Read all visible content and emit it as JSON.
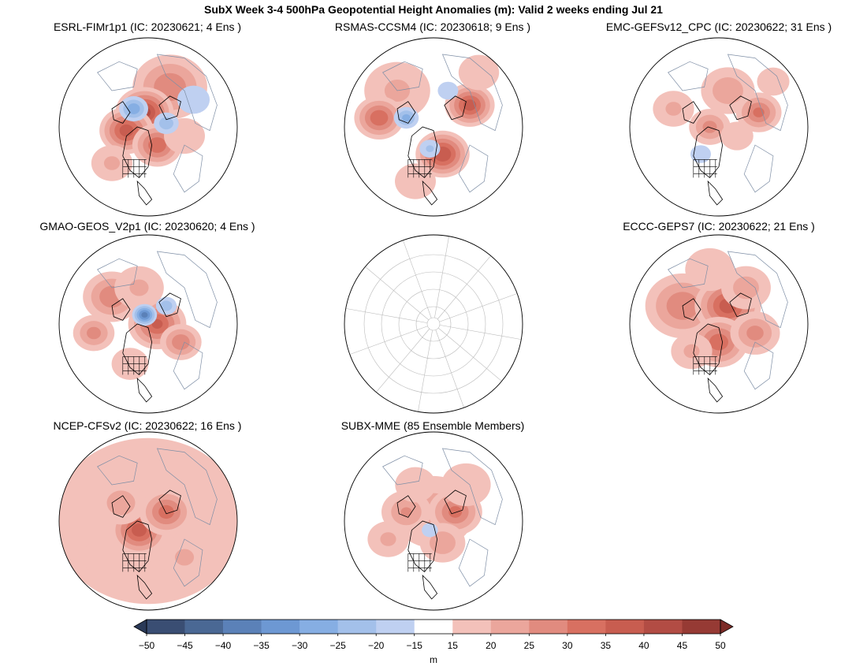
{
  "title": "SubX Week 3-4 500hPa Geopotential Height Anomalies (m): Valid 2 weeks ending Jul 21",
  "panels": [
    {
      "title": "ESRL-FIMr1p1 (IC: 20230621; 4 Ens )",
      "has_data": true,
      "blobs": [
        [
          0.62,
          0.28,
          0.18,
          30
        ],
        [
          0.48,
          0.42,
          0.14,
          42
        ],
        [
          0.38,
          0.52,
          0.13,
          38
        ],
        [
          0.55,
          0.6,
          0.12,
          35
        ],
        [
          0.3,
          0.7,
          0.1,
          22
        ],
        [
          0.7,
          0.55,
          0.1,
          20
        ],
        [
          0.42,
          0.4,
          0.07,
          -30
        ],
        [
          0.6,
          0.48,
          0.06,
          -25
        ],
        [
          0.75,
          0.35,
          0.08,
          -18
        ]
      ]
    },
    {
      "title": "RSMAS-CCSM4 (IC: 20230618; 9 Ens )",
      "has_data": true,
      "blobs": [
        [
          0.3,
          0.3,
          0.16,
          22
        ],
        [
          0.2,
          0.45,
          0.12,
          35
        ],
        [
          0.55,
          0.65,
          0.13,
          40
        ],
        [
          0.7,
          0.38,
          0.12,
          38
        ],
        [
          0.4,
          0.8,
          0.1,
          20
        ],
        [
          0.75,
          0.2,
          0.1,
          18
        ],
        [
          0.35,
          0.45,
          0.06,
          -28
        ],
        [
          0.48,
          0.62,
          0.05,
          -22
        ],
        [
          0.58,
          0.3,
          0.05,
          -20
        ]
      ]
    },
    {
      "title": "EMC-GEFSv12_CPC (IC: 20230622; 31 Ens )",
      "has_data": true,
      "blobs": [
        [
          0.55,
          0.3,
          0.13,
          25
        ],
        [
          0.72,
          0.42,
          0.11,
          32
        ],
        [
          0.45,
          0.5,
          0.1,
          28
        ],
        [
          0.25,
          0.4,
          0.1,
          22
        ],
        [
          0.6,
          0.55,
          0.08,
          20
        ],
        [
          0.8,
          0.25,
          0.08,
          18
        ],
        [
          0.4,
          0.65,
          0.05,
          -20
        ]
      ]
    },
    {
      "title": "GMAO-GEOS_V2p1 (IC: 20230620; 4 Ens )",
      "has_data": true,
      "blobs": [
        [
          0.3,
          0.35,
          0.14,
          30
        ],
        [
          0.55,
          0.5,
          0.14,
          36
        ],
        [
          0.2,
          0.55,
          0.1,
          28
        ],
        [
          0.68,
          0.6,
          0.1,
          30
        ],
        [
          0.45,
          0.3,
          0.12,
          22
        ],
        [
          0.4,
          0.72,
          0.09,
          20
        ],
        [
          0.48,
          0.45,
          0.06,
          -38
        ],
        [
          0.6,
          0.4,
          0.05,
          -25
        ]
      ]
    },
    {
      "title": "",
      "has_data": false,
      "blobs": []
    },
    {
      "title": "ECCC-GEPS7 (IC: 20230622; 21 Ens )",
      "has_data": true,
      "blobs": [
        [
          0.3,
          0.4,
          0.18,
          30
        ],
        [
          0.55,
          0.4,
          0.16,
          38
        ],
        [
          0.5,
          0.6,
          0.14,
          34
        ],
        [
          0.7,
          0.55,
          0.12,
          28
        ],
        [
          0.35,
          0.65,
          0.1,
          22
        ],
        [
          0.65,
          0.3,
          0.12,
          24
        ],
        [
          0.45,
          0.2,
          0.12,
          20
        ]
      ]
    },
    {
      "title": "NCEP-CFSv2 (IC: 20230622; 16 Ens )",
      "has_data": true,
      "blobs": [
        [
          0.5,
          0.5,
          0.5,
          16
        ],
        [
          0.5,
          0.5,
          0.46,
          18
        ],
        [
          0.45,
          0.55,
          0.14,
          38
        ],
        [
          0.6,
          0.45,
          0.13,
          33
        ],
        [
          0.35,
          0.4,
          0.12,
          25
        ],
        [
          0.7,
          0.7,
          0.12,
          22
        ],
        [
          0.25,
          0.7,
          0.1,
          20
        ]
      ]
    },
    {
      "title": "SUBX-MME (85 Ensemble Members)",
      "has_data": true,
      "blobs": [
        [
          0.5,
          0.45,
          0.2,
          24
        ],
        [
          0.62,
          0.45,
          0.13,
          32
        ],
        [
          0.35,
          0.45,
          0.12,
          26
        ],
        [
          0.25,
          0.6,
          0.1,
          22
        ],
        [
          0.55,
          0.62,
          0.11,
          25
        ],
        [
          0.68,
          0.3,
          0.12,
          20
        ],
        [
          0.4,
          0.3,
          0.1,
          18
        ],
        [
          0.48,
          0.55,
          0.04,
          -18
        ]
      ]
    }
  ],
  "colorbar": {
    "unit": "m",
    "ticks": [
      "−50",
      "−45",
      "−40",
      "−35",
      "−30",
      "−25",
      "−20",
      "−15",
      "15",
      "20",
      "25",
      "30",
      "35",
      "40",
      "45",
      "50"
    ],
    "levels": [
      -50,
      -45,
      -40,
      -35,
      -30,
      -25,
      -20,
      -15,
      15,
      20,
      25,
      30,
      35,
      40,
      45,
      50
    ],
    "colors": [
      "#3a4e73",
      "#4a6894",
      "#5b81b8",
      "#6d98d3",
      "#86aee3",
      "#a3c0ea",
      "#bfd0f1",
      "#ffffff",
      "#f3c1ba",
      "#eba69c",
      "#e18b7f",
      "#d87061",
      "#c85d50",
      "#b24c44",
      "#963a34"
    ],
    "under": "#2a3a58",
    "over": "#7c2b27"
  },
  "colors": {
    "coast_land": "#000000",
    "coast_other": "#7f8fa6",
    "grid": "#bbbbbb"
  }
}
